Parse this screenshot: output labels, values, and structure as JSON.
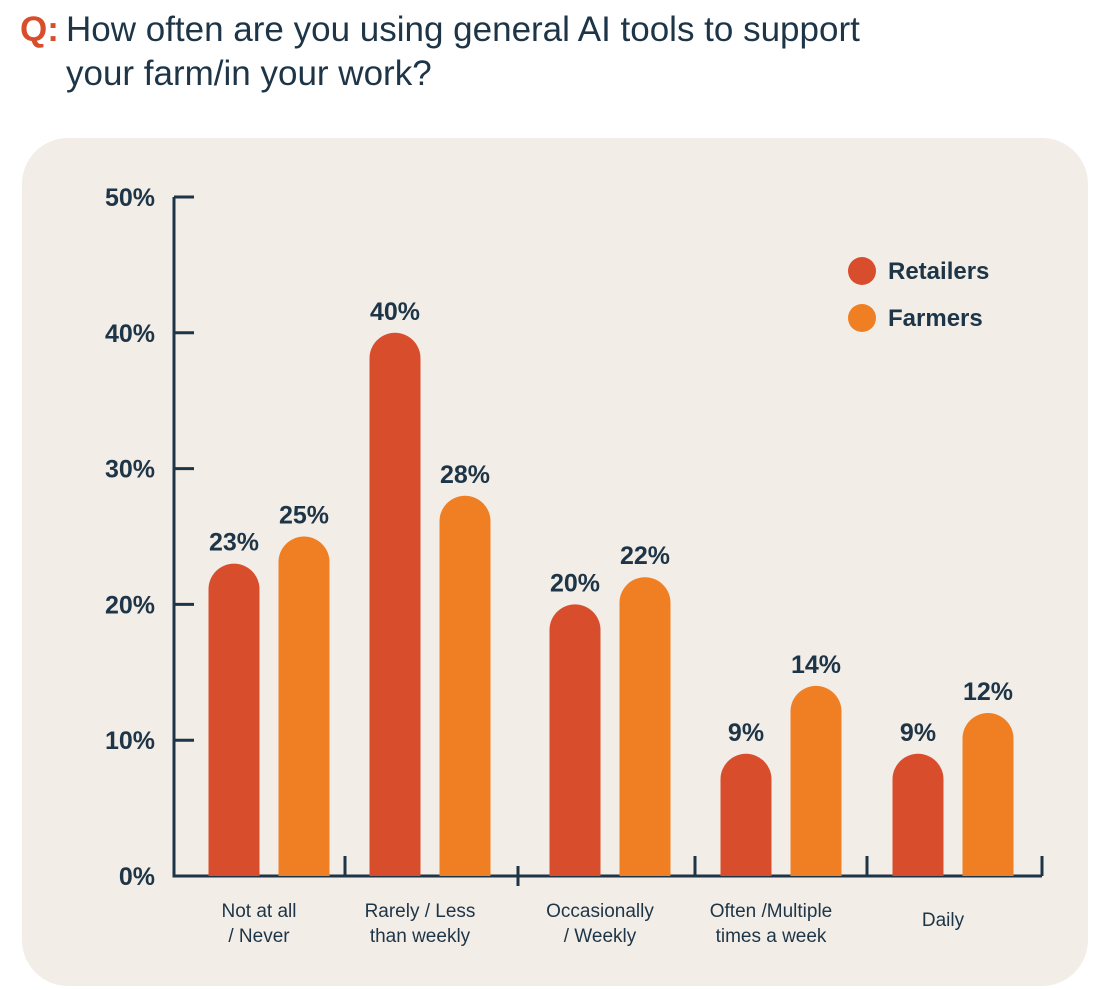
{
  "header": {
    "q_label": "Q:",
    "question_line1": "How often are you using general AI tools to support",
    "question_line2": "your farm/in your work?"
  },
  "colors": {
    "retailers": "#d84e2d",
    "farmers": "#f07f24",
    "panel": "#f2ede7",
    "text": "#1d3547",
    "accent": "#d84e2d"
  },
  "chart_data": {
    "type": "bar",
    "categories": [
      [
        "Not at all",
        "/ Never"
      ],
      [
        "Rarely / Less",
        "than weekly"
      ],
      [
        "Occasionally",
        "/ Weekly"
      ],
      [
        "Often /Multiple",
        "times a week"
      ],
      [
        "Daily"
      ]
    ],
    "series": [
      {
        "name": "Retailers",
        "values": [
          23,
          40,
          20,
          9,
          9
        ],
        "labels": [
          "23%",
          "40%",
          "20%",
          "9%",
          "9%"
        ]
      },
      {
        "name": "Farmers",
        "values": [
          25,
          28,
          22,
          14,
          12
        ],
        "labels": [
          "25%",
          "28%",
          "22%",
          "14%",
          "12%"
        ]
      }
    ],
    "ylim": [
      0,
      50
    ],
    "yticks": [
      "0%",
      "10%",
      "20%",
      "30%",
      "40%",
      "50%"
    ],
    "legend": "top-right",
    "grid": false,
    "title": "",
    "xlabel": "",
    "ylabel": ""
  }
}
